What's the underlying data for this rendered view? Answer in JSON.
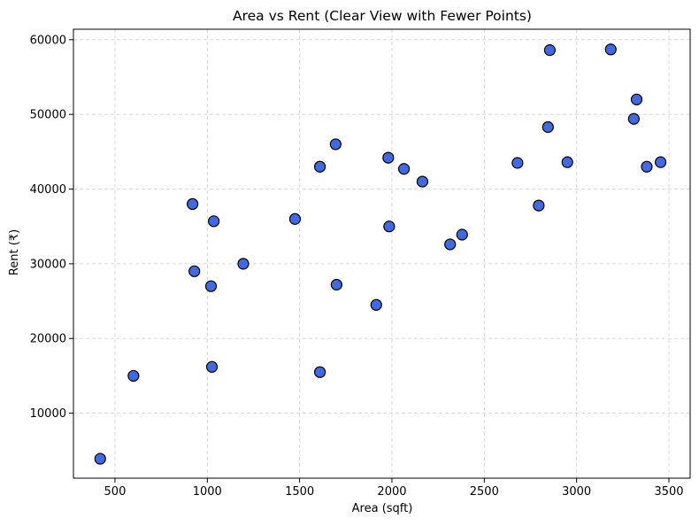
{
  "chart_data": {
    "type": "scatter",
    "title": "Area vs Rent (Clear View with Fewer Points)",
    "xlabel": "Area (sqft)",
    "ylabel": "Rent (₹)",
    "xlim": [
      275,
      3615
    ],
    "ylim": [
      1300,
      61400
    ],
    "xticks": [
      500,
      1000,
      1500,
      2000,
      2500,
      3000,
      3500
    ],
    "yticks": [
      10000,
      20000,
      30000,
      40000,
      50000,
      60000
    ],
    "grid": true,
    "marker_color": "#4169E1",
    "marker_edge_color": "#000000",
    "points": [
      {
        "x": 420,
        "y": 3900
      },
      {
        "x": 600,
        "y": 15000
      },
      {
        "x": 920,
        "y": 38000
      },
      {
        "x": 930,
        "y": 29000
      },
      {
        "x": 1020,
        "y": 27000
      },
      {
        "x": 1025,
        "y": 16200
      },
      {
        "x": 1035,
        "y": 35700
      },
      {
        "x": 1195,
        "y": 30000
      },
      {
        "x": 1475,
        "y": 36000
      },
      {
        "x": 1610,
        "y": 43000
      },
      {
        "x": 1610,
        "y": 15500
      },
      {
        "x": 1695,
        "y": 46000
      },
      {
        "x": 1700,
        "y": 27200
      },
      {
        "x": 1915,
        "y": 24500
      },
      {
        "x": 1980,
        "y": 44200
      },
      {
        "x": 1985,
        "y": 35000
      },
      {
        "x": 2065,
        "y": 42700
      },
      {
        "x": 2165,
        "y": 41000
      },
      {
        "x": 2315,
        "y": 32600
      },
      {
        "x": 2380,
        "y": 33900
      },
      {
        "x": 2680,
        "y": 43500
      },
      {
        "x": 2795,
        "y": 37800
      },
      {
        "x": 2845,
        "y": 48300
      },
      {
        "x": 2855,
        "y": 58600
      },
      {
        "x": 2950,
        "y": 43600
      },
      {
        "x": 3185,
        "y": 58700
      },
      {
        "x": 3310,
        "y": 49400
      },
      {
        "x": 3325,
        "y": 52000
      },
      {
        "x": 3380,
        "y": 43000
      },
      {
        "x": 3455,
        "y": 43600
      }
    ]
  }
}
